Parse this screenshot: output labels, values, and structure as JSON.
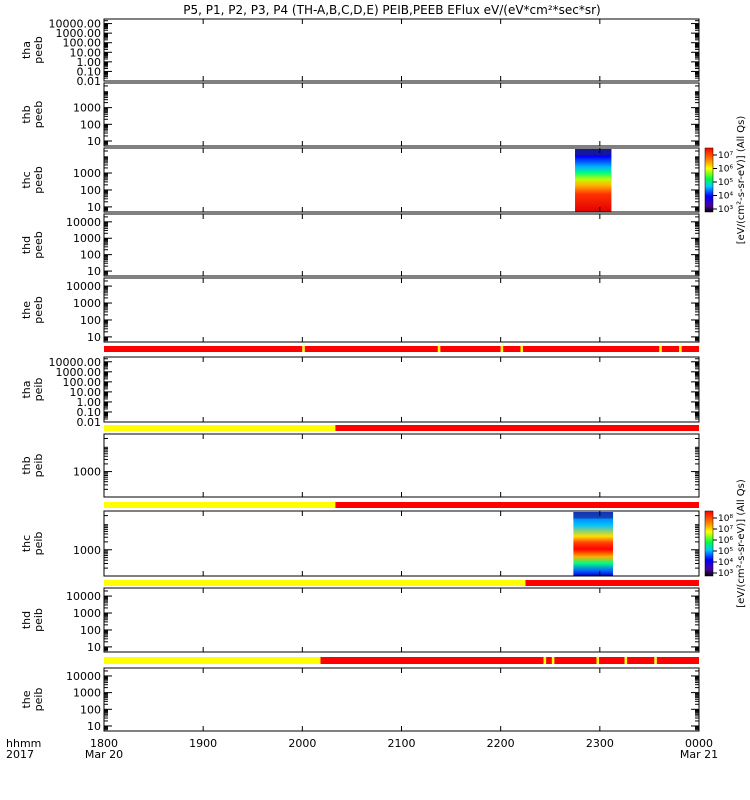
{
  "chart_data": {
    "type": "heatmap",
    "title": "P5, P1, P2, P3, P4 (TH-A,B,C,D,E) PEIB,PEEB EFlux eV/(eV*cm²*sec*sr)",
    "time_axis": {
      "label_line1": "hhmm",
      "label_line2": "2017",
      "range_minutes": [
        0,
        360
      ],
      "ticks": [
        {
          "minute": 0,
          "label": "1800",
          "sublabel": "Mar 20"
        },
        {
          "minute": 60,
          "label": "1900",
          "sublabel": ""
        },
        {
          "minute": 120,
          "label": "2000",
          "sublabel": ""
        },
        {
          "minute": 180,
          "label": "2100",
          "sublabel": ""
        },
        {
          "minute": 240,
          "label": "2200",
          "sublabel": ""
        },
        {
          "minute": 300,
          "label": "2300",
          "sublabel": ""
        },
        {
          "minute": 360,
          "label": "0000",
          "sublabel": "Mar 21"
        }
      ]
    },
    "colorbars": [
      {
        "label": "[eV/(cm²-s-sr-eV)] (All Qs)",
        "tick_labels": [
          "10³",
          "10⁴",
          "10⁵",
          "10⁶",
          "10⁷"
        ],
        "attached_to": "thc peeb"
      },
      {
        "label": "[eV/(cm²-s-sr-eV)] (All Qs)",
        "tick_labels": [
          "10³",
          "10⁴",
          "10⁵",
          "10⁶",
          "10⁷",
          "10⁸"
        ],
        "attached_to": "thc peib"
      }
    ],
    "panels": [
      {
        "probe": "tha",
        "product": "peeb",
        "log_y": true,
        "ylim": [
          0.01,
          30000
        ],
        "ticks": [
          "10000.00",
          "1000.00",
          "100.00",
          "10.00",
          "1.00",
          "0.10",
          "0.01"
        ],
        "data": []
      },
      {
        "probe": "thb",
        "product": "peeb",
        "log_y": true,
        "ylim": [
          5,
          30000
        ],
        "ticks": [
          "1000",
          "100",
          "10"
        ],
        "data": []
      },
      {
        "probe": "thc",
        "product": "peeb",
        "log_y": true,
        "ylim": [
          5,
          30000
        ],
        "ticks": [
          "1000",
          "100",
          "10"
        ],
        "data": [
          {
            "start_minute": 285,
            "end_minute": 307,
            "description": "spectrogram: high flux at low energy, decreasing with energy"
          }
        ]
      },
      {
        "probe": "thd",
        "product": "peeb",
        "log_y": true,
        "ylim": [
          5,
          30000
        ],
        "ticks": [
          "10000",
          "1000",
          "100",
          "10"
        ],
        "data": []
      },
      {
        "probe": "the",
        "product": "peeb",
        "log_y": true,
        "ylim": [
          5,
          30000
        ],
        "ticks": [
          "10000",
          "1000",
          "100",
          "10"
        ],
        "data": []
      },
      {
        "probe": "tha",
        "product": "peib",
        "log_y": true,
        "ylim": [
          0.01,
          30000
        ],
        "ticks": [
          "10000.00",
          "1000.00",
          "100.00",
          "10.00",
          "1.00",
          "0.10",
          "0.01"
        ],
        "data": []
      },
      {
        "probe": "thb",
        "product": "peib",
        "log_y": true,
        "ylim": [
          100,
          30000
        ],
        "ticks": [
          "1000"
        ],
        "data": []
      },
      {
        "probe": "thc",
        "product": "peib",
        "log_y": true,
        "ylim": [
          100,
          30000
        ],
        "ticks": [
          "1000"
        ],
        "data": [
          {
            "start_minute": 284,
            "end_minute": 308,
            "description": "spectrogram: peak flux band near 500 eV"
          }
        ]
      },
      {
        "probe": "thd",
        "product": "peib",
        "log_y": true,
        "ylim": [
          5,
          30000
        ],
        "ticks": [
          "10000",
          "1000",
          "100",
          "10"
        ],
        "data": []
      },
      {
        "probe": "the",
        "product": "peib",
        "log_y": true,
        "ylim": [
          5,
          30000
        ],
        "ticks": [
          "10000",
          "1000",
          "100",
          "10"
        ],
        "data": []
      }
    ],
    "status_bars": [
      {
        "position_after_panel": 5,
        "segments": [
          {
            "start": 0,
            "end": 120,
            "color": "#ff0000"
          },
          {
            "start": 120,
            "end": 121.5,
            "color": "#ffff00"
          },
          {
            "start": 121.5,
            "end": 202,
            "color": "#ff0000"
          },
          {
            "start": 202,
            "end": 203.5,
            "color": "#ffff00"
          },
          {
            "start": 203.5,
            "end": 240,
            "color": "#ff0000"
          },
          {
            "start": 240,
            "end": 241.5,
            "color": "#ffff00"
          },
          {
            "start": 241.5,
            "end": 252,
            "color": "#ff0000"
          },
          {
            "start": 252,
            "end": 253.5,
            "color": "#ffff00"
          },
          {
            "start": 253.5,
            "end": 336,
            "color": "#ff0000"
          },
          {
            "start": 336,
            "end": 337.5,
            "color": "#ffff00"
          },
          {
            "start": 337.5,
            "end": 348,
            "color": "#ff0000"
          },
          {
            "start": 348,
            "end": 349.5,
            "color": "#ffff00"
          },
          {
            "start": 349.5,
            "end": 360,
            "color": "#ff0000"
          }
        ]
      },
      {
        "position_after_panel": 6,
        "segments": [
          {
            "start": 0,
            "end": 140,
            "color": "#ffff00"
          },
          {
            "start": 140,
            "end": 360,
            "color": "#ff0000"
          }
        ]
      },
      {
        "position_after_panel": 7,
        "segments": [
          {
            "start": 0,
            "end": 140,
            "color": "#ffff00"
          },
          {
            "start": 140,
            "end": 360,
            "color": "#ff0000"
          }
        ]
      },
      {
        "position_after_panel": 8,
        "segments": [
          {
            "start": 0,
            "end": 255,
            "color": "#ffff00"
          },
          {
            "start": 255,
            "end": 360,
            "color": "#ff0000"
          }
        ]
      },
      {
        "position_after_panel": 9,
        "segments": [
          {
            "start": 0,
            "end": 131,
            "color": "#ffff00"
          },
          {
            "start": 131,
            "end": 266,
            "color": "#ff0000"
          },
          {
            "start": 266,
            "end": 267.5,
            "color": "#ffff00"
          },
          {
            "start": 267.5,
            "end": 271,
            "color": "#ff0000"
          },
          {
            "start": 271,
            "end": 272.5,
            "color": "#ffff00"
          },
          {
            "start": 272.5,
            "end": 298,
            "color": "#ff0000"
          },
          {
            "start": 298,
            "end": 299.5,
            "color": "#ffff00"
          },
          {
            "start": 299.5,
            "end": 315,
            "color": "#ff0000"
          },
          {
            "start": 315,
            "end": 316.5,
            "color": "#ffff00"
          },
          {
            "start": 316.5,
            "end": 333,
            "color": "#ff0000"
          },
          {
            "start": 333,
            "end": 334.5,
            "color": "#ffff00"
          },
          {
            "start": 334.5,
            "end": 360,
            "color": "#ff0000"
          }
        ]
      }
    ],
    "grid": false,
    "legend": "colorbars at right of thc panels"
  }
}
